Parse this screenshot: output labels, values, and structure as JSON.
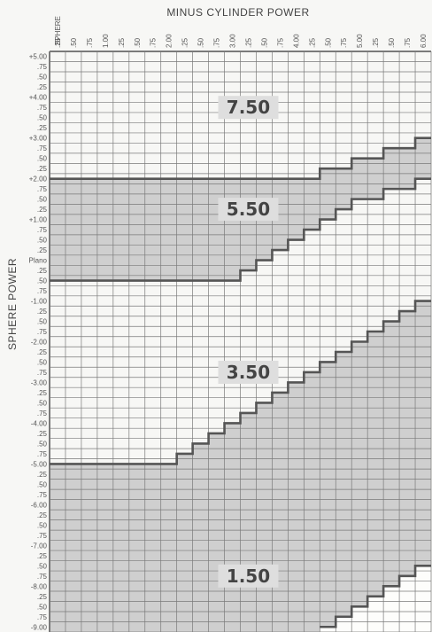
{
  "chart_data": {
    "type": "heatmap",
    "title": "MINUS CYLINDER POWER",
    "xlabel": "MINUS CYLINDER POWER",
    "ylabel": "SPHERE POWER",
    "sphere_header": "SPHERE",
    "x_ticks": [
      ".25",
      ".50",
      ".75",
      "1.00",
      ".25",
      ".50",
      ".75",
      "2.00",
      ".25",
      ".50",
      ".75",
      "3.00",
      ".25",
      ".50",
      ".75",
      "4.00",
      ".25",
      ".50",
      ".75",
      "5.00",
      ".25",
      ".50",
      ".75",
      "6.00"
    ],
    "y_ticks": [
      "+5.00",
      ".75",
      ".50",
      ".25",
      "+4.00",
      ".75",
      ".50",
      ".25",
      "+3.00",
      ".75",
      ".50",
      ".25",
      "+2.00",
      ".75",
      ".50",
      ".25",
      "+1.00",
      ".75",
      ".50",
      ".25",
      "Plano",
      ".25",
      ".50",
      ".75",
      "-1.00",
      ".25",
      ".50",
      ".75",
      "-2.00",
      ".25",
      ".50",
      ".75",
      "-3.00",
      ".25",
      ".50",
      ".75",
      "-4.00",
      ".25",
      ".50",
      ".75",
      "-5.00",
      ".25",
      ".50",
      ".75",
      "-6.00",
      ".25",
      ".50",
      ".75",
      "-7.00",
      ".25",
      ".50",
      ".75",
      "-8.00",
      ".25",
      ".50",
      ".75",
      "-9.00"
    ],
    "cylinder_values": [
      0.25,
      0.5,
      0.75,
      1.0,
      1.25,
      1.5,
      1.75,
      2.0,
      2.25,
      2.5,
      2.75,
      3.0,
      3.25,
      3.5,
      3.75,
      4.0,
      4.25,
      4.5,
      4.75,
      5.0,
      5.25,
      5.5,
      5.75,
      6.0
    ],
    "sphere_range": [
      5.0,
      -9.0
    ],
    "sphere_step": 0.25,
    "zones": [
      {
        "name": "7.50",
        "fill": "#f7f7f5"
      },
      {
        "name": "5.50",
        "fill": "#cfcfcf"
      },
      {
        "name": "3.50",
        "fill": "#f7f7f5"
      },
      {
        "name": "1.50",
        "fill": "#cfcfcf"
      },
      {
        "name": "",
        "fill": "#fdfdfb"
      }
    ],
    "boundary_tops": [
      [
        2.0,
        2.0,
        2.0,
        2.0,
        2.0,
        2.0,
        2.0,
        2.0,
        2.0,
        2.0,
        2.0,
        2.0,
        2.0,
        2.0,
        2.0,
        2.0,
        2.0,
        2.25,
        2.25,
        2.5,
        2.5,
        2.75,
        2.75,
        3.0
      ],
      [
        -0.5,
        -0.5,
        -0.5,
        -0.5,
        -0.5,
        -0.5,
        -0.5,
        -0.5,
        -0.5,
        -0.5,
        -0.5,
        -0.5,
        -0.25,
        0.0,
        0.25,
        0.5,
        0.75,
        1.0,
        1.25,
        1.5,
        1.5,
        1.75,
        1.75,
        2.0
      ],
      [
        -5.0,
        -5.0,
        -5.0,
        -5.0,
        -5.0,
        -5.0,
        -5.0,
        -5.0,
        -4.75,
        -4.5,
        -4.25,
        -4.0,
        -3.75,
        -3.5,
        -3.25,
        -3.0,
        -2.75,
        -2.5,
        -2.25,
        -2.0,
        -1.75,
        -1.5,
        -1.25,
        -1.0
      ],
      [
        -10,
        -10,
        -10,
        -10,
        -10,
        -10,
        -10,
        -10,
        -10,
        -10,
        -10,
        -10,
        -10,
        -10,
        -10,
        -10,
        -10,
        -9.0,
        -8.75,
        -8.5,
        -8.25,
        -8.0,
        -7.75,
        -7.5
      ]
    ],
    "zone_label_positions": [
      {
        "label": "7.50",
        "sphere": 3.75,
        "cylinder": 3.25
      },
      {
        "label": "5.50",
        "sphere": 1.25,
        "cylinder": 3.25
      },
      {
        "label": "3.50",
        "sphere": -2.75,
        "cylinder": 3.25
      },
      {
        "label": "1.50",
        "sphere": -7.75,
        "cylinder": 3.25
      }
    ],
    "grid": true,
    "colors": {
      "background": "#f7f7f5",
      "grid_line": "#7a7a7a",
      "boundary": "#555555",
      "text": "#555555",
      "label_box": "#dedede"
    }
  }
}
